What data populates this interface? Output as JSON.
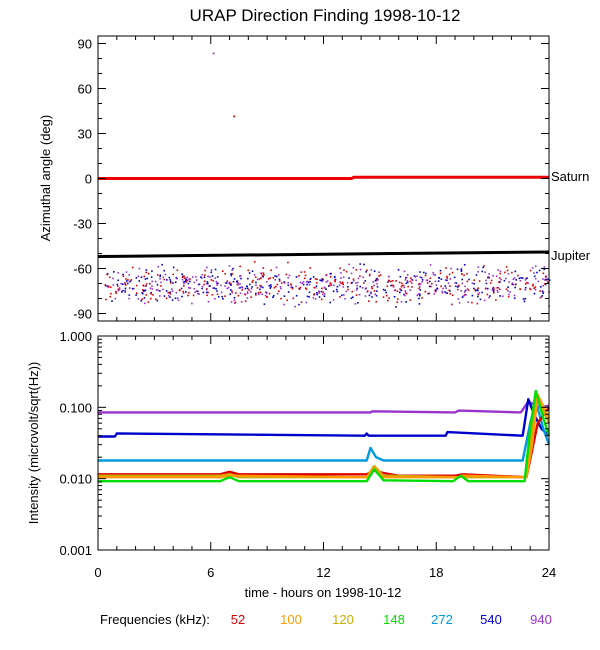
{
  "title": "URAP Direction Finding  1998-10-12",
  "x_axis": {
    "label": "time - hours on 1998-10-12",
    "range": [
      0,
      24
    ],
    "ticks": [
      "0",
      "6",
      "12",
      "18",
      "24"
    ],
    "tick_values": [
      0,
      6,
      12,
      18,
      24
    ]
  },
  "legend": {
    "prefix": "Frequencies (kHz):",
    "items": [
      {
        "label": "52",
        "color": "#dd0000"
      },
      {
        "label": "100",
        "color": "#ff9900"
      },
      {
        "label": "120",
        "color": "#ccaa00"
      },
      {
        "label": "148",
        "color": "#00dd00"
      },
      {
        "label": "272",
        "color": "#0099dd"
      },
      {
        "label": "540",
        "color": "#0000cc"
      },
      {
        "label": "940",
        "color": "#9933cc"
      }
    ]
  },
  "chart_data": [
    {
      "type": "scatter",
      "ylabel": "Azimuthal angle (deg)",
      "xlim": [
        0,
        24
      ],
      "ylim": [
        -95,
        95
      ],
      "yticks": [
        "90",
        "60",
        "30",
        "0",
        "-30",
        "-60",
        "-90"
      ],
      "ytick_values": [
        90,
        60,
        30,
        0,
        -30,
        -60,
        -90
      ],
      "reference_lines": [
        {
          "name": "Saturn",
          "color": "#ee0000",
          "points": [
            [
              0,
              0
            ],
            [
              13.5,
              0
            ],
            [
              13.6,
              0.8
            ],
            [
              24,
              0.8
            ]
          ]
        },
        {
          "name": "Jupiter",
          "color": "#000000",
          "points": [
            [
              0,
              -52
            ],
            [
              24,
              -49
            ]
          ]
        }
      ],
      "scatter_band": {
        "x": [
          0.3,
          24
        ],
        "y": [
          -90,
          -55
        ],
        "center": -70,
        "colors": [
          "#0000cc",
          "#9933cc",
          "#dd0000"
        ]
      },
      "outliers": [
        {
          "x": 6.1,
          "y": 84,
          "color": "#9933cc"
        },
        {
          "x": 7.2,
          "y": 42,
          "color": "#dd0000"
        }
      ]
    },
    {
      "type": "line",
      "ylabel": "Intensity (microvolt/sqrt(Hz))",
      "yscale": "log",
      "xlim": [
        0,
        24
      ],
      "ylim": [
        0.001,
        1.0
      ],
      "yticks": [
        "1.000",
        "0.100",
        "0.010",
        "0.001"
      ],
      "ytick_values": [
        1.0,
        0.1,
        0.01,
        0.001
      ],
      "series": [
        {
          "name": "940",
          "color": "#9933cc",
          "x": [
            0,
            14.5,
            14.6,
            19,
            19.2,
            22.5,
            22.9,
            23.2,
            23.5,
            24
          ],
          "y": [
            0.085,
            0.085,
            0.088,
            0.085,
            0.09,
            0.085,
            0.12,
            0.11,
            0.1,
            0.105
          ]
        },
        {
          "name": "540",
          "color": "#0000cc",
          "x": [
            0,
            0.9,
            1.0,
            14.2,
            14.3,
            14.4,
            18.5,
            18.6,
            22.6,
            22.9,
            23.2,
            23.6,
            24
          ],
          "y": [
            0.039,
            0.039,
            0.043,
            0.04,
            0.043,
            0.04,
            0.04,
            0.045,
            0.04,
            0.13,
            0.08,
            0.05,
            0.04
          ]
        },
        {
          "name": "272",
          "color": "#0099dd",
          "x": [
            0,
            14.3,
            14.5,
            14.8,
            15.2,
            22.6,
            23.0,
            23.3,
            23.7,
            24
          ],
          "y": [
            0.018,
            0.018,
            0.027,
            0.02,
            0.018,
            0.018,
            0.06,
            0.12,
            0.05,
            0.03
          ]
        },
        {
          "name": "52",
          "color": "#dd0000",
          "x": [
            0,
            6.5,
            7.0,
            7.5,
            14.3,
            14.7,
            15.2,
            16.0,
            19.0,
            19.4,
            22.8,
            23.4,
            24
          ],
          "y": [
            0.0115,
            0.0115,
            0.0125,
            0.0115,
            0.0115,
            0.013,
            0.012,
            0.011,
            0.011,
            0.0115,
            0.0105,
            0.06,
            0.1
          ]
        },
        {
          "name": "120",
          "color": "#ccaa00",
          "x": [
            0,
            6.5,
            7.0,
            7.5,
            14.3,
            14.7,
            15.2,
            19.2,
            19.4,
            19.6,
            22.8,
            23.0,
            23.3,
            24
          ],
          "y": [
            0.011,
            0.011,
            0.0115,
            0.0105,
            0.0105,
            0.015,
            0.011,
            0.0105,
            0.011,
            0.0105,
            0.0105,
            0.025,
            0.16,
            0.06
          ]
        },
        {
          "name": "100",
          "color": "#ff9900",
          "x": [
            0,
            6.5,
            7.0,
            14.3,
            14.7,
            15.2,
            19.2,
            19.4,
            22.8,
            23.1,
            23.4,
            24
          ],
          "y": [
            0.0105,
            0.0105,
            0.011,
            0.0105,
            0.014,
            0.0105,
            0.0105,
            0.011,
            0.0105,
            0.03,
            0.15,
            0.07
          ]
        },
        {
          "name": "148",
          "color": "#00dd00",
          "x": [
            0,
            6.5,
            7.0,
            7.5,
            14.3,
            14.7,
            15.2,
            18.9,
            19.3,
            19.7,
            22.7,
            23.0,
            23.3,
            23.7,
            24
          ],
          "y": [
            0.0092,
            0.0092,
            0.0105,
            0.0092,
            0.0092,
            0.0135,
            0.0095,
            0.0092,
            0.011,
            0.0092,
            0.0092,
            0.05,
            0.17,
            0.07,
            0.04
          ]
        }
      ]
    }
  ]
}
